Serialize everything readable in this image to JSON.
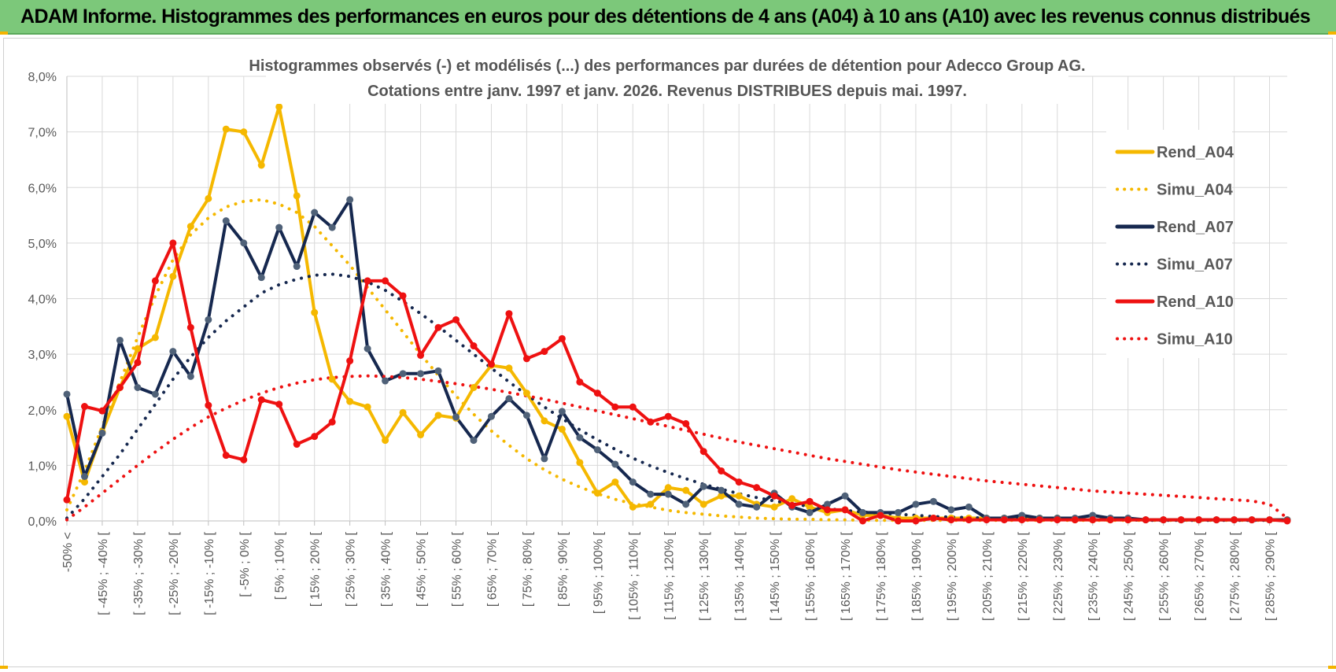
{
  "header": {
    "title": "ADAM Informe. Histogrammes des performances en euros pour des détentions de 4 ans (A04) à 10 ans (A10) avec les revenus connus distribués"
  },
  "chart_data": {
    "type": "line",
    "title_lines": [
      "Histogrammes observés (-) et modélisés (...) des performances par durées de détention pour Adecco Group AG.",
      "Cotations entre janv. 1997 et janv. 2026. Revenus DISTRIBUES depuis mai. 1997."
    ],
    "ylim": [
      0,
      8
    ],
    "y_ticks": [
      "0,0%",
      "1,0%",
      "2,0%",
      "3,0%",
      "4,0%",
      "5,0%",
      "6,0%",
      "7,0%",
      "8,0%"
    ],
    "grid": true,
    "legend_position": "right",
    "x_labels": [
      "-50% <",
      "[ -45% ; -40% [",
      "[ -35% ; -30% [",
      "[ -25% ; -20% [",
      "[ -15% ; -10% [",
      "[ -5% ; 0% [",
      "[ 5% ; 10% [",
      "[ 15% ; 20% [",
      "[ 25% ; 30% [",
      "[ 35% ; 40% [",
      "[ 45% ; 50% [",
      "[ 55% ; 60% [",
      "[ 65% ; 70% [",
      "[ 75% ; 80% [",
      "[ 85% ; 90% [",
      "[ 95% ; 100% [",
      "[ 105% ; 110% [",
      "[ 115% ; 120% [",
      "[ 125% ; 130% [",
      "[ 135% ; 140% [",
      "[ 145% ; 150% [",
      "[ 155% ; 160% [",
      "[ 165% ; 170% [",
      "[ 175% ; 180% [",
      "[ 185% ; 190% [",
      "[ 195% ; 200% [",
      "[ 205% ; 210% [",
      "[ 215% ; 220% [",
      "[ 225% ; 230% [",
      "[ 235% ; 240% [",
      "[ 245% ; 250% [",
      "[ 255% ; 260% [",
      "[ 265% ; 270% [",
      "[ 275% ; 280% [",
      "[ 285% ; 290% ["
    ],
    "series": [
      {
        "name": "Rend_A04",
        "style": "solid",
        "color": "#f5b800",
        "values": [
          1.88,
          0.7,
          1.6,
          2.4,
          3.1,
          3.3,
          4.4,
          5.3,
          5.8,
          7.05,
          7.0,
          6.4,
          7.45,
          5.85,
          3.75,
          2.55,
          2.15,
          2.05,
          1.45,
          1.95,
          1.55,
          1.9,
          1.85,
          2.4,
          2.8,
          2.75,
          2.3,
          1.8,
          1.65,
          1.05,
          0.5,
          0.7,
          0.25,
          0.3,
          0.6,
          0.55,
          0.3,
          0.45,
          0.45,
          0.3,
          0.25,
          0.4,
          0.25,
          0.15,
          0.2,
          0.1,
          0.1,
          0.05,
          0.05,
          0.05,
          0.05,
          0.05,
          0.05,
          0.05,
          0.05,
          0.05,
          0.05,
          0.02,
          0.02,
          0.02,
          0.02,
          0.02,
          0.02,
          0.02,
          0.02,
          0.02,
          0.02,
          0.02,
          0.02,
          0.02
        ]
      },
      {
        "name": "Simu_A04",
        "style": "dotted",
        "color": "#f5b800",
        "values": [
          0.2,
          0.9,
          1.7,
          2.5,
          3.3,
          4.05,
          4.7,
          5.15,
          5.45,
          5.65,
          5.75,
          5.78,
          5.7,
          5.55,
          5.3,
          4.95,
          4.6,
          4.2,
          3.8,
          3.4,
          3.0,
          2.62,
          2.25,
          1.92,
          1.62,
          1.36,
          1.12,
          0.92,
          0.75,
          0.61,
          0.49,
          0.39,
          0.31,
          0.25,
          0.19,
          0.15,
          0.12,
          0.09,
          0.07,
          0.05,
          0.04,
          0.03,
          0.03,
          0.02,
          0.02,
          0.01,
          0.01,
          0.01,
          0.01,
          0.01,
          0.01,
          0.01,
          0.01,
          0.01,
          0.01,
          0.01,
          0.01,
          0.01,
          0.01,
          0.01,
          0.01,
          0.01,
          0.01,
          0.01,
          0.01,
          0.01,
          0.01,
          0.01,
          0.01,
          0.01
        ]
      },
      {
        "name": "Rend_A07",
        "style": "solid",
        "color": "#16284f",
        "values": [
          2.28,
          0.8,
          1.58,
          3.25,
          2.4,
          2.28,
          3.05,
          2.6,
          3.62,
          5.4,
          5.0,
          4.38,
          5.28,
          4.58,
          5.55,
          5.28,
          5.78,
          3.1,
          2.52,
          2.65,
          2.65,
          2.7,
          1.87,
          1.45,
          1.88,
          2.2,
          1.9,
          1.12,
          1.97,
          1.5,
          1.28,
          1.02,
          0.7,
          0.48,
          0.48,
          0.3,
          0.62,
          0.55,
          0.3,
          0.25,
          0.5,
          0.25,
          0.15,
          0.3,
          0.45,
          0.15,
          0.15,
          0.15,
          0.3,
          0.35,
          0.2,
          0.25,
          0.05,
          0.05,
          0.1,
          0.05,
          0.05,
          0.05,
          0.1,
          0.05,
          0.05,
          0.02,
          0.02,
          0.02,
          0.02,
          0.02,
          0.02,
          0.02,
          0.02,
          0.02
        ]
      },
      {
        "name": "Simu_A07",
        "style": "dotted",
        "color": "#16284f",
        "values": [
          0.05,
          0.4,
          0.8,
          1.2,
          1.65,
          2.1,
          2.55,
          2.95,
          3.3,
          3.6,
          3.85,
          4.1,
          4.25,
          4.35,
          4.42,
          4.44,
          4.4,
          4.3,
          4.15,
          3.95,
          3.73,
          3.5,
          3.25,
          3.0,
          2.75,
          2.5,
          2.27,
          2.05,
          1.84,
          1.64,
          1.46,
          1.29,
          1.13,
          0.99,
          0.87,
          0.76,
          0.66,
          0.57,
          0.49,
          0.42,
          0.36,
          0.31,
          0.26,
          0.22,
          0.19,
          0.16,
          0.14,
          0.12,
          0.1,
          0.08,
          0.07,
          0.06,
          0.05,
          0.04,
          0.04,
          0.03,
          0.03,
          0.02,
          0.02,
          0.02,
          0.02,
          0.01,
          0.01,
          0.01,
          0.01,
          0.01,
          0.01,
          0.01,
          0.01,
          0.01
        ]
      },
      {
        "name": "Rend_A10",
        "style": "solid",
        "color": "#ee1111",
        "values": [
          0.38,
          2.06,
          1.98,
          2.4,
          2.85,
          4.32,
          5.0,
          3.48,
          2.08,
          1.18,
          1.1,
          2.18,
          2.1,
          1.38,
          1.52,
          1.78,
          2.88,
          4.32,
          4.32,
          4.05,
          2.98,
          3.48,
          3.62,
          3.15,
          2.82,
          3.73,
          2.92,
          3.05,
          3.28,
          2.5,
          2.3,
          2.05,
          2.05,
          1.78,
          1.88,
          1.75,
          1.25,
          0.9,
          0.7,
          0.6,
          0.45,
          0.28,
          0.35,
          0.2,
          0.2,
          0.0,
          0.1,
          0.0,
          0.0,
          0.05,
          0.02,
          0.02,
          0.02,
          0.02,
          0.02,
          0.02,
          0.02,
          0.02,
          0.02,
          0.02,
          0.02,
          0.02,
          0.02,
          0.02,
          0.02,
          0.02,
          0.02,
          0.02,
          0.02,
          0.0
        ]
      },
      {
        "name": "Simu_A10",
        "style": "dotted",
        "color": "#ee1111",
        "values": [
          0.02,
          0.25,
          0.5,
          0.75,
          1.0,
          1.24,
          1.47,
          1.68,
          1.87,
          2.03,
          2.17,
          2.3,
          2.4,
          2.48,
          2.54,
          2.58,
          2.6,
          2.61,
          2.6,
          2.58,
          2.55,
          2.51,
          2.47,
          2.42,
          2.37,
          2.31,
          2.25,
          2.19,
          2.12,
          2.05,
          1.98,
          1.91,
          1.84,
          1.77,
          1.7,
          1.63,
          1.56,
          1.49,
          1.42,
          1.36,
          1.3,
          1.24,
          1.18,
          1.12,
          1.07,
          1.02,
          0.97,
          0.92,
          0.88,
          0.84,
          0.8,
          0.76,
          0.72,
          0.69,
          0.66,
          0.63,
          0.6,
          0.57,
          0.54,
          0.52,
          0.5,
          0.48,
          0.46,
          0.44,
          0.42,
          0.4,
          0.38,
          0.36,
          0.3,
          0.05
        ]
      }
    ]
  }
}
